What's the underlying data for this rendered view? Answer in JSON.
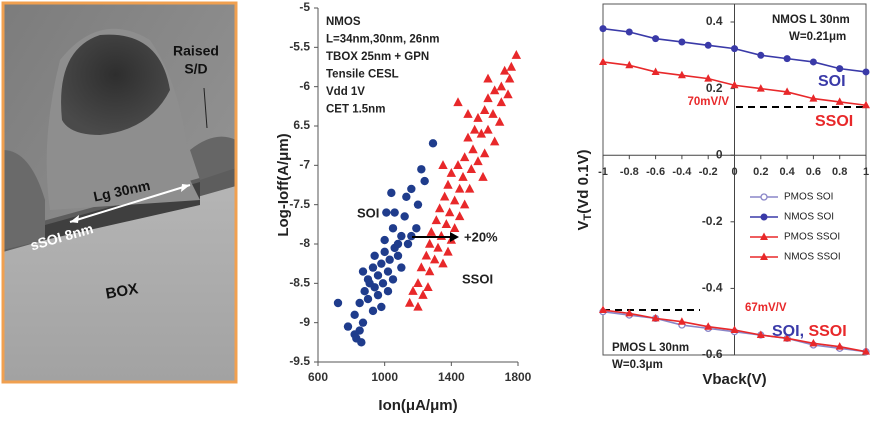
{
  "image": {
    "labels": [
      "Raised",
      "S/D",
      "Lg 30nm",
      "sSOI 8nm",
      "BOX"
    ]
  },
  "chart_data": [
    {
      "type": "scatter",
      "x_label": "Ion(μA/μm)",
      "y_label": "Log-Ioff(A/μm)",
      "annotation": [
        "NMOS",
        "L=34nm,30nm, 26nm",
        "TBOX 25nm + GPN",
        "Tensile CESL",
        "Vdd 1V",
        "CET 1.5nm"
      ],
      "arrow_label": "+20%",
      "xlim": [
        600,
        1800
      ],
      "xticks": [
        600,
        1000,
        1400,
        1800
      ],
      "ylim": [
        -9.5,
        -5
      ],
      "yticks": [
        -5,
        -5.5,
        -6,
        {
          "value": -6.5,
          "label": "6.5"
        },
        -7,
        -7.5,
        -8,
        -8.5,
        -9,
        -9.5
      ],
      "grid": false,
      "series": [
        {
          "name": "SOI",
          "color": "#1f3c8c",
          "marker": "circle",
          "x": [
            1290,
            1220,
            1240,
            1160,
            1130,
            1200,
            1010,
            1060,
            1120,
            1050,
            1190,
            1100,
            1000,
            1140,
            1060,
            1000,
            940,
            1080,
            1030,
            980,
            930,
            1100,
            870,
            1020,
            960,
            900,
            1050,
            990,
            940,
            880,
            1020,
            960,
            900,
            850,
            720,
            980,
            930,
            820,
            870,
            780,
            850,
            820,
            860,
            830,
            910,
            1080,
            1160,
            1040
          ],
          "values": [
            -6.72,
            -7.05,
            -7.2,
            -7.3,
            -7.4,
            -7.5,
            -7.6,
            -7.6,
            -7.65,
            -7.8,
            -7.8,
            -7.9,
            -7.95,
            -8.0,
            -8.05,
            -8.1,
            -8.15,
            -8.15,
            -8.2,
            -8.25,
            -8.3,
            -8.3,
            -8.35,
            -8.35,
            -8.4,
            -8.45,
            -8.45,
            -8.5,
            -8.55,
            -8.6,
            -8.6,
            -8.65,
            -8.7,
            -8.75,
            -8.75,
            -8.8,
            -8.85,
            -8.9,
            -9.0,
            -9.05,
            -9.1,
            -9.15,
            -9.25,
            -9.2,
            -8.5,
            -8.0,
            -7.9,
            -7.35
          ]
        },
        {
          "name": "SSOI",
          "color": "#e8282a",
          "marker": "triangle",
          "x": [
            1790,
            1760,
            1720,
            1750,
            1700,
            1660,
            1740,
            1620,
            1700,
            1600,
            1650,
            1560,
            1690,
            1540,
            1620,
            1580,
            1500,
            1660,
            1530,
            1600,
            1480,
            1560,
            1440,
            1520,
            1400,
            1470,
            1590,
            1380,
            1450,
            1510,
            1360,
            1420,
            1480,
            1330,
            1390,
            1450,
            1310,
            1370,
            1420,
            1280,
            1340,
            1400,
            1270,
            1320,
            1380,
            1250,
            1300,
            1350,
            1220,
            1270,
            1200,
            1260,
            1170,
            1230,
            1150,
            1200,
            1440,
            1500,
            1620,
            1350
          ],
          "values": [
            -5.6,
            -5.75,
            -5.8,
            -5.9,
            -6.0,
            -6.05,
            -6.1,
            -6.15,
            -6.2,
            -6.3,
            -6.35,
            -6.4,
            -6.45,
            -6.55,
            -6.55,
            -6.6,
            -6.65,
            -6.7,
            -6.8,
            -6.85,
            -6.9,
            -6.95,
            -7.0,
            -7.05,
            -7.1,
            -7.15,
            -7.15,
            -7.25,
            -7.3,
            -7.3,
            -7.4,
            -7.45,
            -7.5,
            -7.55,
            -7.6,
            -7.65,
            -7.7,
            -7.75,
            -7.8,
            -7.85,
            -7.9,
            -7.95,
            -8.0,
            -8.05,
            -8.1,
            -8.15,
            -8.2,
            -8.25,
            -8.3,
            -8.35,
            -8.5,
            -8.55,
            -8.6,
            -8.65,
            -8.75,
            -8.8,
            -6.2,
            -6.35,
            -5.9,
            -7.0
          ]
        }
      ]
    },
    {
      "type": "line",
      "x_label": "Vback(V)",
      "y_label": {
        "main": "V",
        "sub": "T",
        "rest": "(Vd 0.1V)"
      },
      "annotations": [
        "NMOS  L 30nm",
        "W=0.21μm",
        "70mV/V",
        "67mV/V",
        "PMOS  L 30nm",
        "W=0.3μm"
      ],
      "line_labels": [
        "SOI",
        "SSOI",
        "SOI",
        ", ",
        "SSOI"
      ],
      "x": [
        -1,
        -0.8,
        -0.6,
        -0.4,
        -0.2,
        0,
        0.2,
        0.4,
        0.6,
        0.8,
        1
      ],
      "xlim": [
        -1,
        1
      ],
      "xticks": [
        -1,
        -0.8,
        -0.6,
        -0.4,
        -0.2,
        0,
        0.2,
        0.4,
        0.6,
        0.8,
        1
      ],
      "ylim": [
        -0.6,
        0.4
      ],
      "yticks": [
        0.4,
        0.2,
        0,
        -0.2,
        -0.4,
        -0.6
      ],
      "legend": "right",
      "series": [
        {
          "name": "PMOS SOI",
          "color": "#8a86c8",
          "marker": "open-circle",
          "values": [
            -0.47,
            -0.48,
            -0.49,
            -0.51,
            -0.52,
            -0.53,
            -0.54,
            -0.55,
            -0.57,
            -0.58,
            -0.59
          ]
        },
        {
          "name": "NMOS SOI",
          "color": "#3a3aa8",
          "marker": "circle",
          "values": [
            0.38,
            0.37,
            0.35,
            0.34,
            0.33,
            0.32,
            0.3,
            0.29,
            0.28,
            0.26,
            0.25
          ]
        },
        {
          "name": "PMOS SSOI",
          "color": "#e8282a",
          "marker": "triangle",
          "values": [
            -0.465,
            -0.475,
            -0.49,
            -0.5,
            -0.515,
            -0.525,
            -0.54,
            -0.55,
            -0.565,
            -0.575,
            -0.59
          ]
        },
        {
          "name": "NMOS SSOI",
          "color": "#e8282a",
          "marker": "triangle",
          "values": [
            0.28,
            0.27,
            0.25,
            0.24,
            0.23,
            0.21,
            0.2,
            0.19,
            0.17,
            0.16,
            0.15
          ]
        }
      ]
    }
  ]
}
